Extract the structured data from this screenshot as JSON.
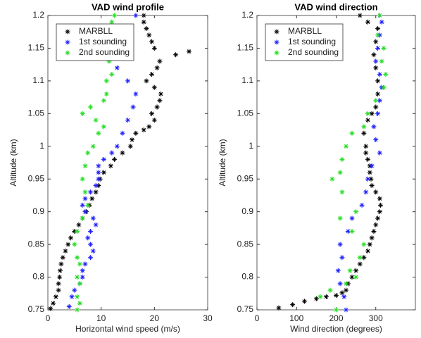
{
  "chart_data": [
    {
      "type": "scatter",
      "title": "VAD wind profile",
      "xlabel": "Horizontal wind speed (m/s)",
      "ylabel": "Altitude (km)",
      "xlim": [
        0,
        30
      ],
      "ylim": [
        0.75,
        1.2
      ],
      "xticks": [
        0,
        10,
        20,
        30
      ],
      "yticks": [
        0.75,
        0.8,
        0.85,
        0.9,
        0.95,
        1,
        1.05,
        1.1,
        1.15,
        1.2
      ],
      "grid": false,
      "legend": "upper left",
      "series": [
        {
          "name": "MARBLL",
          "color": "#000000",
          "x": [
            0.5,
            1,
            1.5,
            2,
            2,
            2.2,
            2.3,
            2.5,
            2.8,
            3.3,
            3.8,
            4.3,
            5,
            5.8,
            6.5,
            7.2,
            7.8,
            8.3,
            9,
            9.5,
            9.8,
            10.5,
            11.8,
            12.5,
            14,
            15.5,
            15.8,
            16.5,
            18,
            19,
            20,
            19.5,
            20.5,
            21,
            21.2,
            20,
            18.5,
            19.5,
            20.5,
            21,
            26.5,
            24,
            20,
            19.5,
            19,
            18.5,
            18,
            18
          ],
          "y": [
            0.752,
            0.76,
            0.77,
            0.78,
            0.79,
            0.8,
            0.81,
            0.82,
            0.83,
            0.84,
            0.85,
            0.86,
            0.87,
            0.88,
            0.89,
            0.9,
            0.91,
            0.92,
            0.93,
            0.94,
            0.95,
            0.96,
            0.97,
            0.98,
            0.99,
            1.0,
            1.01,
            1.02,
            1.025,
            1.03,
            1.04,
            1.05,
            1.06,
            1.07,
            1.08,
            1.09,
            1.1,
            1.11,
            1.12,
            1.13,
            1.145,
            1.14,
            1.15,
            1.16,
            1.17,
            1.18,
            1.19,
            1.2
          ]
        },
        {
          "name": "1st sounding",
          "color": "#1f1fff",
          "x": [
            4,
            4.5,
            5,
            6,
            6.5,
            6.5,
            7,
            8,
            8.5,
            8,
            7.5,
            8,
            9,
            8.5,
            7,
            6.5,
            7,
            8,
            9,
            9.5,
            9.5,
            9.5,
            10.5,
            12,
            13,
            14,
            15,
            16,
            16.5,
            15,
            13,
            12,
            12.5,
            14,
            16.5
          ],
          "y": [
            0.755,
            0.77,
            0.78,
            0.79,
            0.8,
            0.81,
            0.82,
            0.83,
            0.84,
            0.85,
            0.86,
            0.87,
            0.88,
            0.89,
            0.9,
            0.91,
            0.92,
            0.93,
            0.94,
            0.95,
            0.96,
            0.97,
            0.98,
            0.99,
            1.0,
            1.02,
            1.04,
            1.06,
            1.08,
            1.1,
            1.12,
            1.14,
            1.16,
            1.18,
            1.2
          ]
        },
        {
          "name": "2nd sounding",
          "color": "#22dd22",
          "x": [
            5.5,
            6,
            5.5,
            6,
            5.5,
            6,
            5.5,
            5,
            5.5,
            6.5,
            7.5,
            7,
            6.5,
            7,
            7.5,
            8.5,
            9.5,
            10.5,
            9,
            6.5,
            8,
            10.5,
            11,
            11,
            12,
            11.5,
            12.5,
            11.5,
            12,
            12.5
          ],
          "y": [
            0.75,
            0.76,
            0.77,
            0.79,
            0.8,
            0.82,
            0.83,
            0.85,
            0.87,
            0.89,
            0.91,
            0.93,
            0.95,
            0.97,
            0.99,
            1.0,
            1.02,
            1.03,
            1.04,
            1.05,
            1.06,
            1.07,
            1.08,
            1.1,
            1.11,
            1.13,
            1.15,
            1.17,
            1.19,
            1.2
          ]
        }
      ]
    },
    {
      "type": "scatter",
      "title": "VAD wind direction",
      "xlabel": "Wind direction (degrees)",
      "ylabel": "Altitude (km)",
      "xlim": [
        0,
        400
      ],
      "ylim": [
        0.75,
        1.2
      ],
      "xticks": [
        0,
        100,
        200,
        300
      ],
      "yticks": [
        0.75,
        0.8,
        0.85,
        0.9,
        0.95,
        1,
        1.05,
        1.1,
        1.15,
        1.2
      ],
      "grid": false,
      "legend": "upper left",
      "series": [
        {
          "name": "MARBLL",
          "color": "#000000",
          "x": [
            55,
            90,
            120,
            150,
            175,
            200,
            215,
            225,
            230,
            240,
            250,
            260,
            270,
            280,
            285,
            290,
            295,
            300,
            305,
            310,
            312,
            310,
            300,
            290,
            288,
            285,
            285,
            280,
            275,
            275,
            270,
            280,
            290,
            300,
            305,
            305,
            300,
            295,
            300,
            305,
            260,
            280
          ],
          "y": [
            0.753,
            0.758,
            0.763,
            0.767,
            0.77,
            0.772,
            0.776,
            0.78,
            0.79,
            0.8,
            0.81,
            0.82,
            0.83,
            0.84,
            0.85,
            0.86,
            0.87,
            0.88,
            0.89,
            0.9,
            0.91,
            0.92,
            0.93,
            0.94,
            0.95,
            0.96,
            0.97,
            0.98,
            0.99,
            1.0,
            1.02,
            1.04,
            1.05,
            1.06,
            1.08,
            1.1,
            1.12,
            1.14,
            1.16,
            1.18,
            1.2,
            1.19
          ]
        },
        {
          "name": "1st sounding",
          "color": "#1f1fff",
          "x": [
            225,
            220,
            210,
            205,
            215,
            210,
            230,
            240,
            265,
            275,
            280,
            290,
            310,
            300,
            295,
            305,
            310,
            315,
            310,
            300,
            305,
            310,
            315,
            310
          ],
          "y": [
            0.75,
            0.77,
            0.79,
            0.81,
            0.83,
            0.85,
            0.87,
            0.89,
            0.91,
            0.93,
            0.95,
            0.97,
            0.99,
            1.01,
            1.03,
            1.05,
            1.07,
            1.09,
            1.11,
            1.13,
            1.15,
            1.17,
            1.19,
            1.2
          ]
        },
        {
          "name": "2nd sounding",
          "color": "#22dd22",
          "x": [
            200,
            160,
            185,
            225,
            250,
            235,
            260,
            270,
            240,
            210,
            250,
            215,
            190,
            210,
            215,
            225,
            240,
            270,
            280,
            300,
            320,
            325,
            315,
            320,
            305,
            310
          ],
          "y": [
            0.75,
            0.77,
            0.78,
            0.79,
            0.8,
            0.81,
            0.83,
            0.85,
            0.87,
            0.89,
            0.9,
            0.93,
            0.95,
            0.96,
            0.98,
            1.0,
            1.02,
            1.03,
            1.05,
            1.07,
            1.09,
            1.11,
            1.13,
            1.15,
            1.17,
            1.2
          ]
        }
      ]
    }
  ]
}
